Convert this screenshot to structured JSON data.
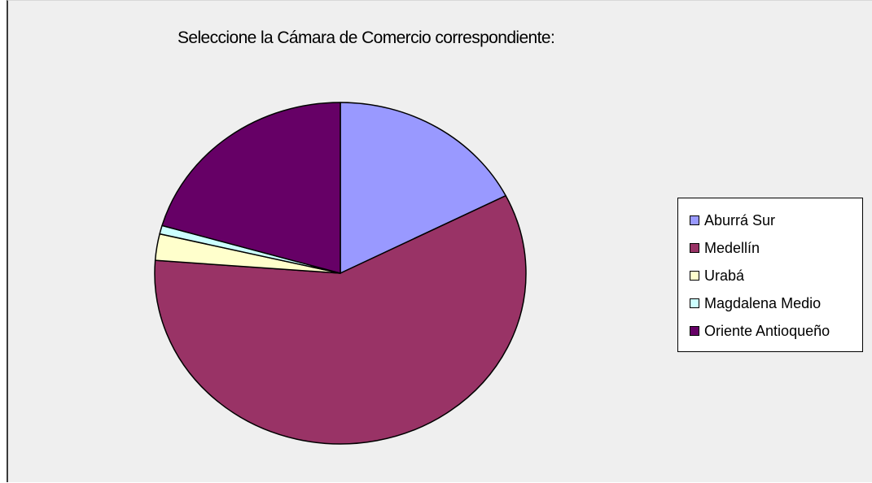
{
  "chart_data": {
    "type": "pie",
    "title": "Seleccione la Cámara de Comercio correspondiente:",
    "slices": [
      {
        "label": "Aburrá Sur",
        "value": 17.5,
        "color": "#9999ff"
      },
      {
        "label": "Medellín",
        "value": 58.7,
        "color": "#993366"
      },
      {
        "label": "Urabá",
        "value": 2.5,
        "color": "#ffffcc"
      },
      {
        "label": "Magdalena Medio",
        "value": 0.8,
        "color": "#ccffff"
      },
      {
        "label": "Oriente Antioqueño",
        "value": 20.5,
        "color": "#660066"
      }
    ],
    "legend_position": "right",
    "start_angle": "12 o'clock, clockwise"
  }
}
